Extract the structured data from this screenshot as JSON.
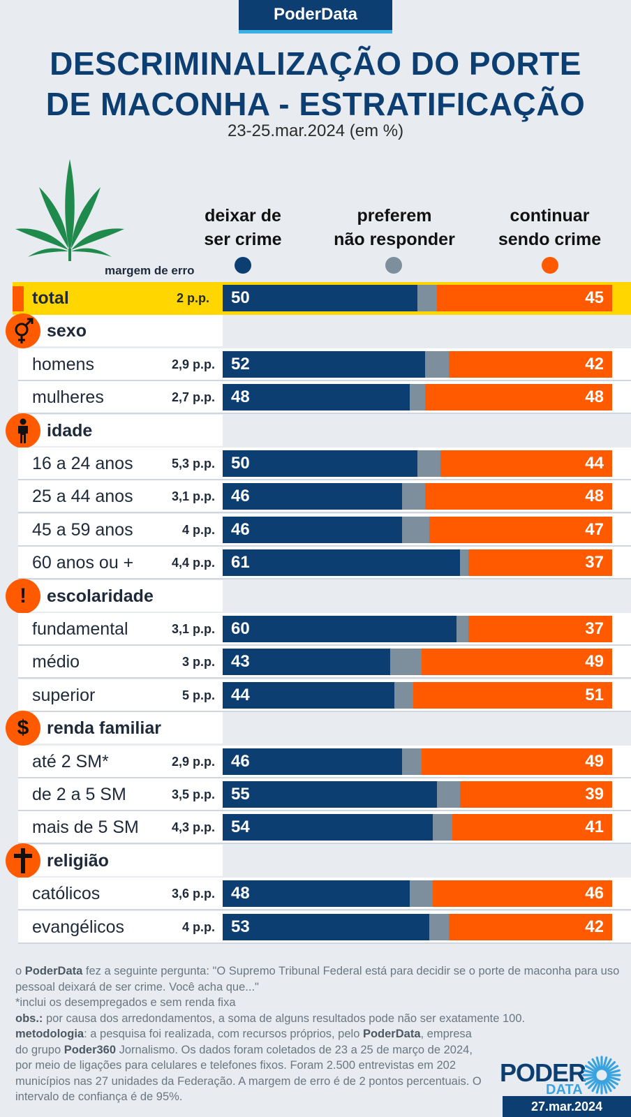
{
  "brand": "PoderData",
  "title_line1": "DESCRIMINALIZAÇÃO DO PORTE",
  "title_line2": "DE MACONHA - ESTRATIFICAÇÃO",
  "subtitle": "23-25.mar.2024 (em %)",
  "margin_label": "margem de erro",
  "legend": [
    {
      "line1": "deixar de",
      "line2": "ser crime",
      "color": "#0d3e72"
    },
    {
      "line1": "preferem",
      "line2": "não responder",
      "color": "#7d8f9c"
    },
    {
      "line1": "continuar",
      "line2": "sendo crime",
      "color": "#ff5a00"
    }
  ],
  "colors": {
    "deixar": "#0d3e72",
    "nao_responder": "#7d8f9c",
    "continuar": "#ff5a00",
    "total_bg": "#ffd600"
  },
  "chart_data": {
    "type": "bar",
    "orientation": "horizontal-stacked",
    "series_names": [
      "deixar de ser crime",
      "preferem não responder",
      "continuar sendo crime"
    ],
    "total": {
      "label": "total",
      "moe": "2 p.p.",
      "deixar": 50,
      "continuar": 45
    },
    "groups": [
      {
        "name": "sexo",
        "icon": "gender-icon",
        "rows": [
          {
            "label": "homens",
            "moe": "2,9 p.p.",
            "deixar": 52,
            "continuar": 42
          },
          {
            "label": "mulheres",
            "moe": "2,7 p.p.",
            "deixar": 48,
            "continuar": 48
          }
        ]
      },
      {
        "name": "idade",
        "icon": "person-icon",
        "rows": [
          {
            "label": "16 a 24 anos",
            "moe": "5,3 p.p.",
            "deixar": 50,
            "continuar": 44
          },
          {
            "label": "25 a 44 anos",
            "moe": "3,1 p.p.",
            "deixar": 46,
            "continuar": 48
          },
          {
            "label": "45 a 59 anos",
            "moe": "4 p.p.",
            "deixar": 46,
            "continuar": 47
          },
          {
            "label": "60 anos ou +",
            "moe": "4,4 p.p.",
            "deixar": 61,
            "continuar": 37
          }
        ]
      },
      {
        "name": "escolaridade",
        "icon": "exclamation-icon",
        "rows": [
          {
            "label": "fundamental",
            "moe": "3,1 p.p.",
            "deixar": 60,
            "continuar": 37
          },
          {
            "label": "médio",
            "moe": "3 p.p.",
            "deixar": 43,
            "continuar": 49
          },
          {
            "label": "superior",
            "moe": "5 p.p.",
            "deixar": 44,
            "continuar": 51
          }
        ]
      },
      {
        "name": "renda familiar",
        "icon": "dollar-icon",
        "rows": [
          {
            "label": "até 2 SM*",
            "moe": "2,9 p.p.",
            "deixar": 46,
            "continuar": 49
          },
          {
            "label": "de 2 a 5 SM",
            "moe": "3,5 p.p.",
            "deixar": 55,
            "continuar": 39
          },
          {
            "label": "mais de 5 SM",
            "moe": "4,3 p.p.",
            "deixar": 54,
            "continuar": 41
          }
        ]
      },
      {
        "name": "religião",
        "icon": "cross-icon",
        "rows": [
          {
            "label": "católicos",
            "moe": "3,6 p.p.",
            "deixar": 48,
            "continuar": 46
          },
          {
            "label": "evangélicos",
            "moe": "4 p.p.",
            "deixar": 53,
            "continuar": 42
          }
        ]
      }
    ]
  },
  "notes": {
    "q_brand": "PoderData",
    "q_text": " fez a seguinte pergunta: \"O Supremo Tribunal Federal está para decidir se o porte de maconha para uso pessoal deixará de ser crime. Você acha que...\"",
    "footnote": "*inclui os desempregados e sem renda fixa",
    "obs_label": "obs.:",
    "obs_text": " por causa dos arredondamentos, a soma de alguns resultados pode não ser exatamente 100.",
    "meth_label": "metodologia",
    "meth_text1": ": a pesquisa foi realizada, com recursos próprios, pelo ",
    "meth_brand": "PoderData",
    "meth_text2": ", empresa do grupo ",
    "meth_brand2": "Poder360",
    "meth_text3": " Jornalismo. Os dados foram coletados de 23 a 25 de março de 2024, por meio de ligações para celulares e telefones fixos. Foram 2.500 entrevistas em 202 municípios nas 27 unidades da Federação. A margem de erro é de 2 pontos percentuais. O intervalo de confiança é de 95%."
  },
  "logo": {
    "top": "PODER",
    "bottom": "DATA"
  },
  "date": "27.mar.2024"
}
